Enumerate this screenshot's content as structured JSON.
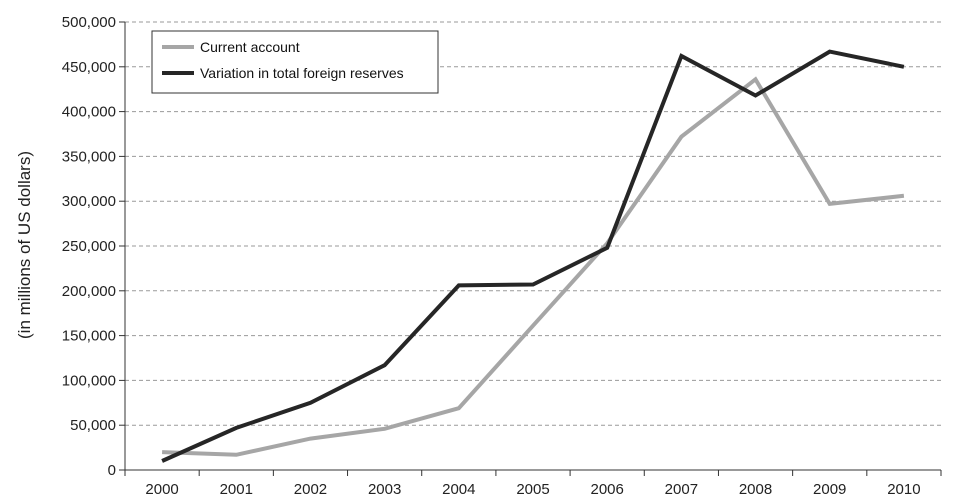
{
  "chart_data": {
    "type": "line",
    "title": "",
    "xlabel": "",
    "ylabel": "(in millions of US dollars)",
    "x": [
      "2000",
      "2001",
      "2002",
      "2003",
      "2004",
      "2005",
      "2006",
      "2007",
      "2008",
      "2009",
      "2010"
    ],
    "ylim": [
      0,
      500000
    ],
    "yticks": [
      "0",
      "50,000",
      "100,000",
      "150,000",
      "200,000",
      "250,000",
      "300,000",
      "350,000",
      "400,000",
      "450,000",
      "500,000"
    ],
    "grid": "horizontal dashed",
    "legend_position": "top-left",
    "series": [
      {
        "name": "Current account",
        "color": "#a6a6a6",
        "values": [
          20000,
          17000,
          35000,
          46000,
          69000,
          161000,
          253000,
          372000,
          436000,
          297000,
          306000
        ]
      },
      {
        "name": "Variation in total foreign reserves",
        "color": "#262626",
        "values": [
          10000,
          47000,
          75000,
          117000,
          206000,
          207000,
          248000,
          462000,
          418000,
          467000,
          450000
        ]
      }
    ]
  }
}
